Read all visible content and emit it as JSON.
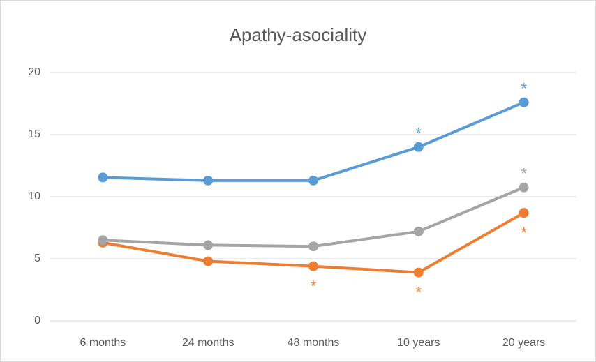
{
  "chart_data": {
    "type": "line",
    "title": "Apathy-asociality",
    "categories": [
      "6 months",
      "24 months",
      "48 months",
      "10 years",
      "20 years"
    ],
    "series": [
      {
        "color": "#5b9bd5",
        "values": [
          11.55,
          11.3,
          11.3,
          14.0,
          17.6
        ],
        "annotations": [
          null,
          null,
          null,
          "*",
          "*"
        ]
      },
      {
        "color": "#ed7d31",
        "values": [
          6.3,
          4.8,
          4.4,
          3.9,
          8.7
        ],
        "annotations": [
          null,
          null,
          "*",
          "*",
          "*"
        ]
      },
      {
        "color": "#a5a5a5",
        "values": [
          6.5,
          6.1,
          6.0,
          7.2,
          10.75
        ],
        "annotations": [
          null,
          null,
          null,
          null,
          "*"
        ]
      }
    ],
    "ylim": [
      0,
      20
    ],
    "yticks": [
      0,
      5,
      10,
      15,
      20
    ],
    "grid": true
  }
}
